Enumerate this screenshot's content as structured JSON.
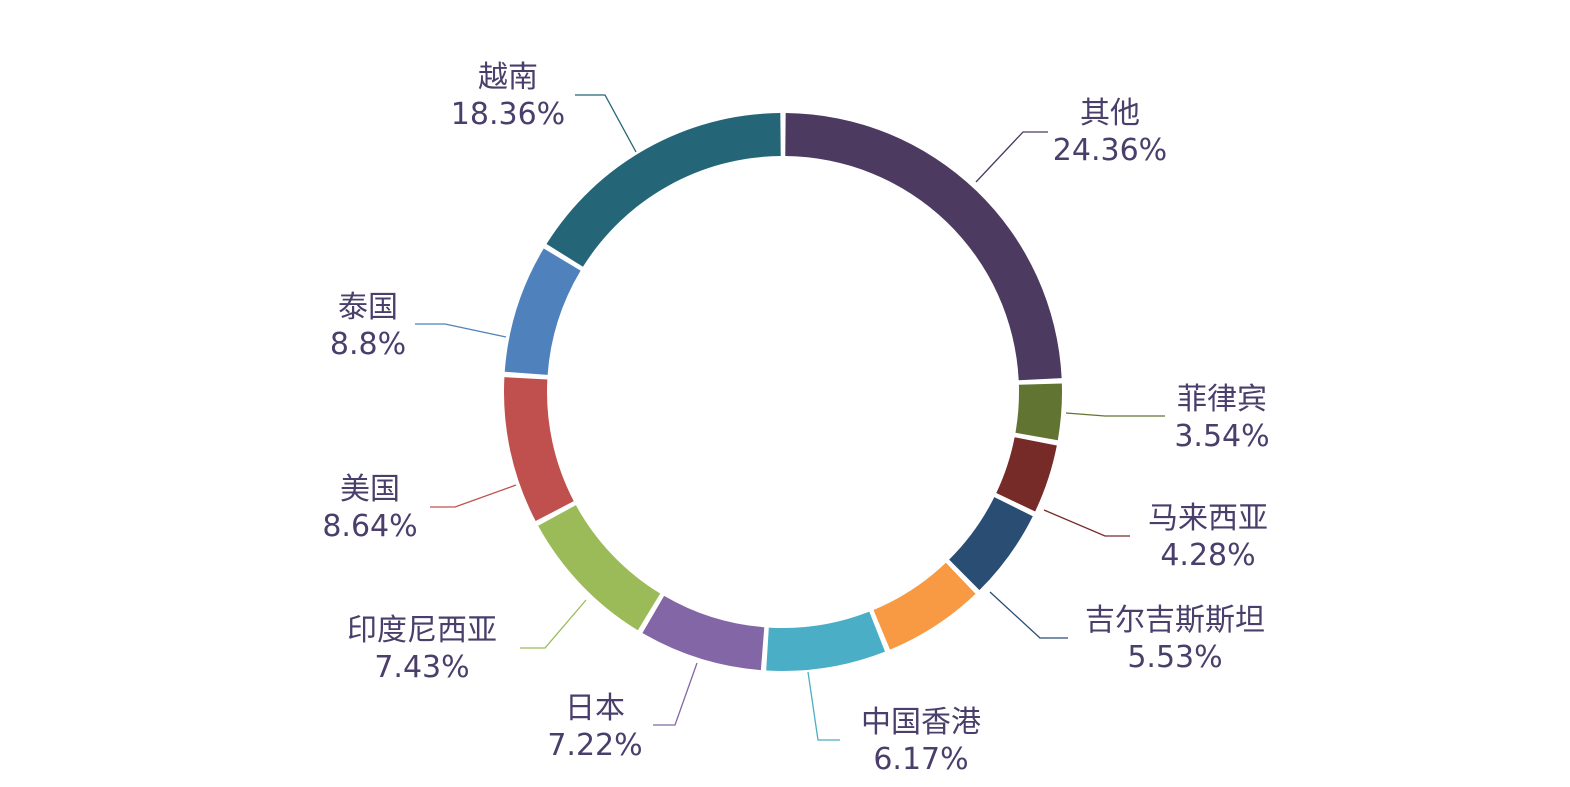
{
  "chart_data": {
    "type": "pie",
    "style": "donut",
    "start": "12 o'clock",
    "direction": "clockwise",
    "slices": [
      {
        "name": "其他",
        "value": 24.36,
        "label": "24.36%",
        "color": "#4d3a61"
      },
      {
        "name": "菲律宾",
        "value": 3.54,
        "label": "3.54%",
        "color": "#627432"
      },
      {
        "name": "马来西亚",
        "value": 4.28,
        "label": "4.28%",
        "color": "#772b29"
      },
      {
        "name": "吉尔吉斯斯坦",
        "value": 5.53,
        "label": "5.53%",
        "color": "#2a4d74"
      },
      {
        "name": "中国香港",
        "value": 6.17,
        "label": "6.17%",
        "color": "#f79a43"
      },
      {
        "name": "日本",
        "value": 7.22,
        "label": "7.22%",
        "color": "#4baec7"
      },
      {
        "name": "印度尼西亚",
        "value": 7.43,
        "label": "7.43%",
        "color": "#8366a6"
      },
      {
        "name": "美国",
        "value": 8.64,
        "label": "8.64%",
        "color": "#9bbb59"
      },
      {
        "name": "泰国",
        "value": 8.8,
        "label": "8.8%",
        "color": "#c0504d"
      },
      {
        "name": "越南",
        "value": 18.36,
        "label": "18.36%",
        "color": "#4f81bd"
      }
    ],
    "extra_slice_color": "#246678",
    "label_color": "#4a3f6b"
  }
}
